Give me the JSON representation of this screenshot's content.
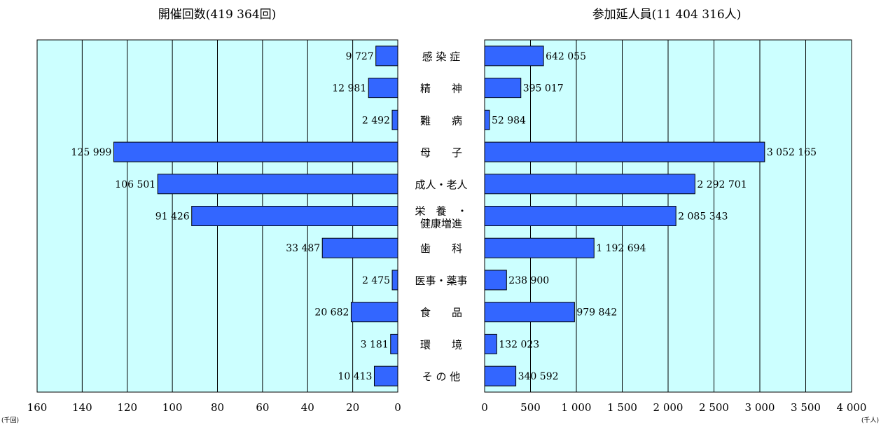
{
  "chart_data": [
    {
      "type": "bar",
      "orientation": "horizontal",
      "direction": "right-to-left",
      "title": "開催回数(419 364回)",
      "unit_label": "(千回)",
      "xlim": [
        0,
        160
      ],
      "ticks": [
        160,
        140,
        120,
        100,
        80,
        60,
        40,
        20,
        0
      ],
      "grid": true,
      "bar_color": "#3366ff",
      "plot_bg": "#ccffff",
      "values": [
        9727,
        12981,
        2492,
        125999,
        106501,
        91426,
        33487,
        2475,
        20682,
        3181,
        10413
      ],
      "value_labels": [
        "9 727",
        "12 981",
        "2 492",
        "125 999",
        "106 501",
        "91 426",
        "33 487",
        "2 475",
        "20 682",
        "3 181",
        "10 413"
      ]
    },
    {
      "type": "bar",
      "orientation": "horizontal",
      "direction": "left-to-right",
      "title": "参加延人員(11 404 316人)",
      "unit_label": "(千人)",
      "xlim": [
        0,
        4000
      ],
      "ticks": [
        "0",
        "500",
        "1 000",
        "1 500",
        "2 000",
        "2 500",
        "3 000",
        "3 500",
        "4 000"
      ],
      "grid": true,
      "bar_color": "#3366ff",
      "plot_bg": "#ccffff",
      "values": [
        642055,
        395017,
        52984,
        3052165,
        2292701,
        2085343,
        1192694,
        238900,
        979842,
        132023,
        340592
      ],
      "value_labels": [
        "642 055",
        "395 017",
        "52 984",
        "3 052 165",
        "2 292 701",
        "2 085 343",
        "1 192 694",
        "238 900",
        "979 842",
        "132 023",
        "340 592"
      ]
    }
  ],
  "categories": [
    [
      "感 染 症"
    ],
    [
      "精　　神"
    ],
    [
      "難　　病"
    ],
    [
      "母　　子"
    ],
    [
      "成人・老人"
    ],
    [
      "栄　養　・",
      "健康増進"
    ],
    [
      "歯　　科"
    ],
    [
      "医事・薬事"
    ],
    [
      "食　　品"
    ],
    [
      "環　　境"
    ],
    [
      "そ の 他"
    ]
  ]
}
